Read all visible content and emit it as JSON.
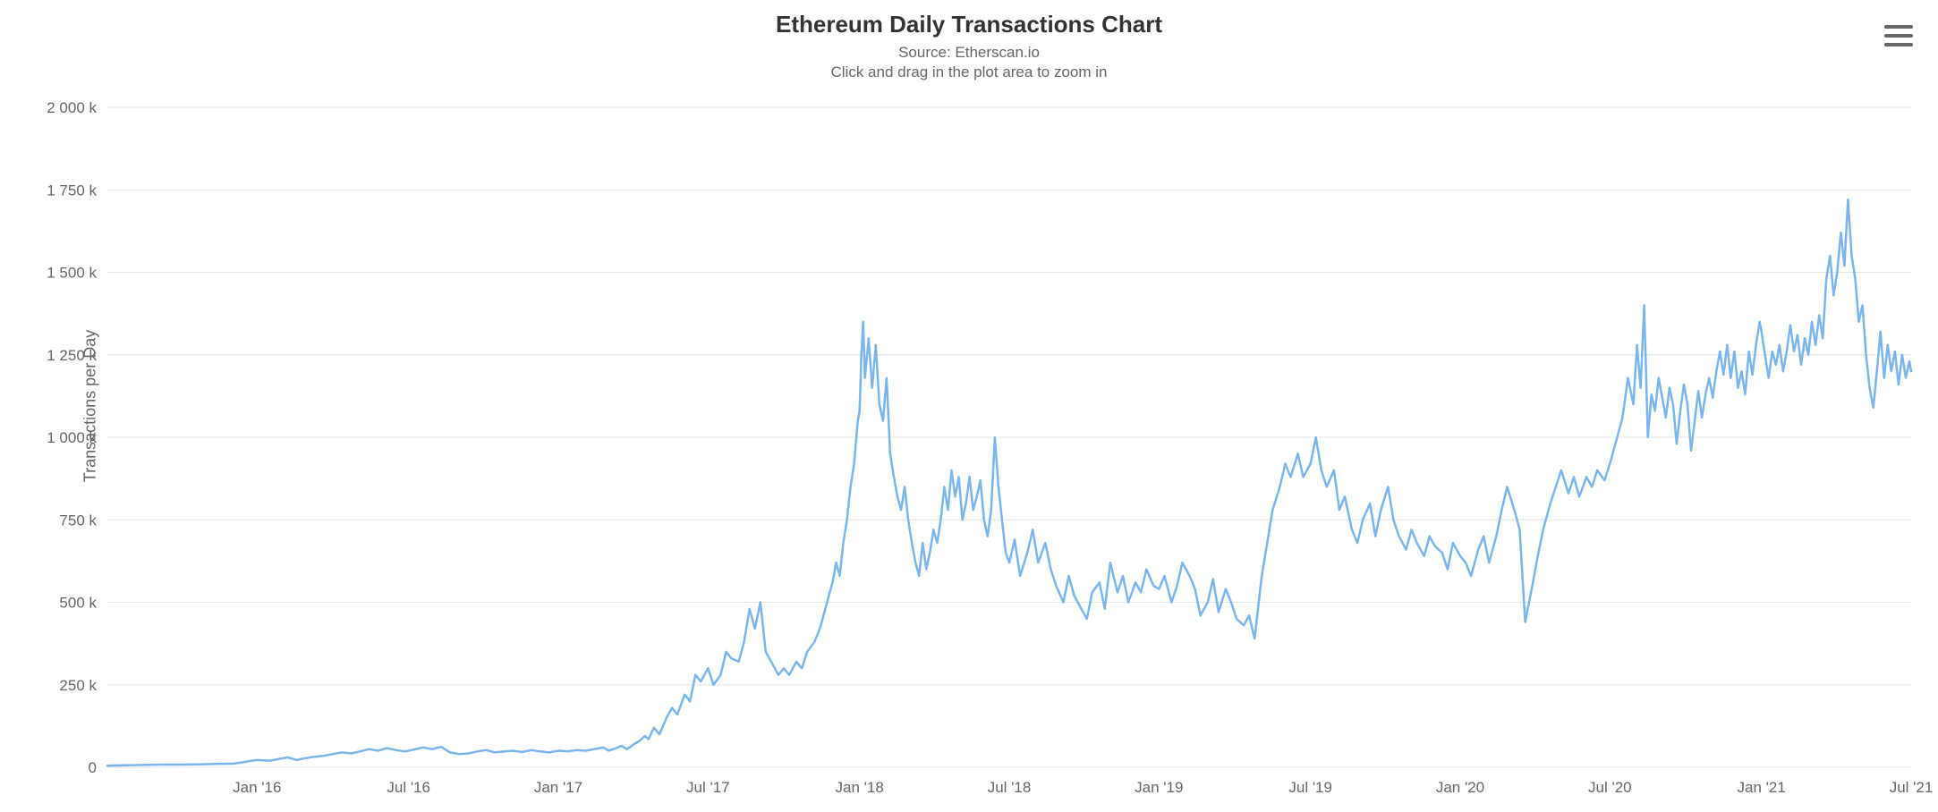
{
  "chart": {
    "title": "Ethereum Daily Transactions Chart",
    "subtitle": "Source: Etherscan.io",
    "instruction": "Click and drag in the plot area to zoom in",
    "y_axis_title": "Transactions per Day",
    "type": "line",
    "line_color": "#7cb5ec",
    "line_width": 2.5,
    "background_color": "#ffffff",
    "grid_color": "#e6e6e6",
    "text_color": "#666666",
    "title_color": "#333333",
    "title_fontsize": 26,
    "subtitle_fontsize": 17,
    "tick_fontsize": 17,
    "axis_title_fontsize": 18,
    "ylim": [
      0,
      2000
    ],
    "ytick_step": 250,
    "y_ticks": [
      {
        "value": 0,
        "label": "0"
      },
      {
        "value": 250,
        "label": "250 k"
      },
      {
        "value": 500,
        "label": "500 k"
      },
      {
        "value": 750,
        "label": "750 k"
      },
      {
        "value": 1000,
        "label": "1 000 k"
      },
      {
        "value": 1250,
        "label": "1 250 k"
      },
      {
        "value": 1500,
        "label": "1 500 k"
      },
      {
        "value": 1750,
        "label": "1 750 k"
      },
      {
        "value": 2000,
        "label": "2 000 k"
      }
    ],
    "x_ticks": [
      {
        "t": 0.083,
        "label": "Jan '16"
      },
      {
        "t": 0.167,
        "label": "Jul '16"
      },
      {
        "t": 0.25,
        "label": "Jan '17"
      },
      {
        "t": 0.333,
        "label": "Jul '17"
      },
      {
        "t": 0.417,
        "label": "Jan '18"
      },
      {
        "t": 0.5,
        "label": "Jul '18"
      },
      {
        "t": 0.583,
        "label": "Jan '19"
      },
      {
        "t": 0.667,
        "label": "Jul '19"
      },
      {
        "t": 0.75,
        "label": "Jan '20"
      },
      {
        "t": 0.833,
        "label": "Jul '20"
      },
      {
        "t": 0.917,
        "label": "Jan '21"
      },
      {
        "t": 1.0,
        "label": "Jul '21"
      }
    ],
    "data": [
      [
        0.0,
        5
      ],
      [
        0.01,
        6
      ],
      [
        0.02,
        7
      ],
      [
        0.03,
        8
      ],
      [
        0.04,
        8
      ],
      [
        0.05,
        9
      ],
      [
        0.06,
        10
      ],
      [
        0.07,
        11
      ],
      [
        0.075,
        15
      ],
      [
        0.08,
        20
      ],
      [
        0.083,
        22
      ],
      [
        0.09,
        20
      ],
      [
        0.095,
        25
      ],
      [
        0.1,
        30
      ],
      [
        0.105,
        22
      ],
      [
        0.11,
        28
      ],
      [
        0.115,
        32
      ],
      [
        0.12,
        35
      ],
      [
        0.125,
        40
      ],
      [
        0.13,
        45
      ],
      [
        0.135,
        42
      ],
      [
        0.14,
        48
      ],
      [
        0.145,
        55
      ],
      [
        0.15,
        50
      ],
      [
        0.155,
        58
      ],
      [
        0.16,
        52
      ],
      [
        0.165,
        48
      ],
      [
        0.167,
        50
      ],
      [
        0.175,
        60
      ],
      [
        0.18,
        55
      ],
      [
        0.185,
        62
      ],
      [
        0.19,
        45
      ],
      [
        0.195,
        40
      ],
      [
        0.2,
        42
      ],
      [
        0.205,
        48
      ],
      [
        0.21,
        52
      ],
      [
        0.215,
        45
      ],
      [
        0.22,
        48
      ],
      [
        0.225,
        50
      ],
      [
        0.23,
        46
      ],
      [
        0.235,
        52
      ],
      [
        0.24,
        48
      ],
      [
        0.245,
        45
      ],
      [
        0.25,
        50
      ],
      [
        0.255,
        48
      ],
      [
        0.26,
        52
      ],
      [
        0.265,
        50
      ],
      [
        0.27,
        55
      ],
      [
        0.275,
        60
      ],
      [
        0.278,
        50
      ],
      [
        0.282,
        58
      ],
      [
        0.285,
        65
      ],
      [
        0.288,
        55
      ],
      [
        0.292,
        70
      ],
      [
        0.295,
        80
      ],
      [
        0.298,
        95
      ],
      [
        0.3,
        85
      ],
      [
        0.303,
        120
      ],
      [
        0.306,
        100
      ],
      [
        0.31,
        150
      ],
      [
        0.313,
        180
      ],
      [
        0.316,
        160
      ],
      [
        0.32,
        220
      ],
      [
        0.323,
        200
      ],
      [
        0.326,
        280
      ],
      [
        0.329,
        260
      ],
      [
        0.333,
        300
      ],
      [
        0.336,
        250
      ],
      [
        0.34,
        280
      ],
      [
        0.343,
        350
      ],
      [
        0.346,
        330
      ],
      [
        0.35,
        320
      ],
      [
        0.353,
        380
      ],
      [
        0.356,
        480
      ],
      [
        0.359,
        420
      ],
      [
        0.362,
        500
      ],
      [
        0.365,
        350
      ],
      [
        0.368,
        320
      ],
      [
        0.372,
        280
      ],
      [
        0.375,
        300
      ],
      [
        0.378,
        280
      ],
      [
        0.382,
        320
      ],
      [
        0.385,
        300
      ],
      [
        0.388,
        350
      ],
      [
        0.392,
        380
      ],
      [
        0.395,
        420
      ],
      [
        0.398,
        480
      ],
      [
        0.4,
        520
      ],
      [
        0.402,
        560
      ],
      [
        0.404,
        620
      ],
      [
        0.406,
        580
      ],
      [
        0.408,
        680
      ],
      [
        0.41,
        750
      ],
      [
        0.412,
        850
      ],
      [
        0.414,
        920
      ],
      [
        0.416,
        1050
      ],
      [
        0.417,
        1080
      ],
      [
        0.418,
        1250
      ],
      [
        0.419,
        1350
      ],
      [
        0.42,
        1180
      ],
      [
        0.422,
        1300
      ],
      [
        0.424,
        1150
      ],
      [
        0.426,
        1280
      ],
      [
        0.428,
        1100
      ],
      [
        0.43,
        1050
      ],
      [
        0.432,
        1180
      ],
      [
        0.434,
        950
      ],
      [
        0.436,
        880
      ],
      [
        0.438,
        820
      ],
      [
        0.44,
        780
      ],
      [
        0.442,
        850
      ],
      [
        0.444,
        750
      ],
      [
        0.446,
        680
      ],
      [
        0.448,
        620
      ],
      [
        0.45,
        580
      ],
      [
        0.452,
        680
      ],
      [
        0.454,
        600
      ],
      [
        0.456,
        650
      ],
      [
        0.458,
        720
      ],
      [
        0.46,
        680
      ],
      [
        0.462,
        750
      ],
      [
        0.464,
        850
      ],
      [
        0.466,
        780
      ],
      [
        0.468,
        900
      ],
      [
        0.47,
        820
      ],
      [
        0.472,
        880
      ],
      [
        0.474,
        750
      ],
      [
        0.476,
        800
      ],
      [
        0.478,
        880
      ],
      [
        0.48,
        780
      ],
      [
        0.482,
        820
      ],
      [
        0.484,
        870
      ],
      [
        0.486,
        750
      ],
      [
        0.488,
        700
      ],
      [
        0.49,
        780
      ],
      [
        0.492,
        1000
      ],
      [
        0.494,
        850
      ],
      [
        0.496,
        750
      ],
      [
        0.498,
        650
      ],
      [
        0.5,
        620
      ],
      [
        0.503,
        690
      ],
      [
        0.506,
        580
      ],
      [
        0.51,
        650
      ],
      [
        0.513,
        720
      ],
      [
        0.516,
        620
      ],
      [
        0.52,
        680
      ],
      [
        0.523,
        600
      ],
      [
        0.526,
        550
      ],
      [
        0.53,
        500
      ],
      [
        0.533,
        580
      ],
      [
        0.536,
        520
      ],
      [
        0.54,
        480
      ],
      [
        0.543,
        450
      ],
      [
        0.546,
        530
      ],
      [
        0.55,
        560
      ],
      [
        0.553,
        480
      ],
      [
        0.556,
        620
      ],
      [
        0.56,
        530
      ],
      [
        0.563,
        580
      ],
      [
        0.566,
        500
      ],
      [
        0.57,
        560
      ],
      [
        0.573,
        530
      ],
      [
        0.576,
        600
      ],
      [
        0.58,
        550
      ],
      [
        0.583,
        540
      ],
      [
        0.586,
        580
      ],
      [
        0.59,
        500
      ],
      [
        0.593,
        550
      ],
      [
        0.596,
        620
      ],
      [
        0.6,
        580
      ],
      [
        0.603,
        540
      ],
      [
        0.606,
        460
      ],
      [
        0.61,
        500
      ],
      [
        0.613,
        570
      ],
      [
        0.616,
        470
      ],
      [
        0.62,
        540
      ],
      [
        0.623,
        500
      ],
      [
        0.626,
        450
      ],
      [
        0.63,
        430
      ],
      [
        0.633,
        460
      ],
      [
        0.636,
        390
      ],
      [
        0.64,
        580
      ],
      [
        0.643,
        680
      ],
      [
        0.646,
        780
      ],
      [
        0.65,
        850
      ],
      [
        0.653,
        920
      ],
      [
        0.656,
        880
      ],
      [
        0.66,
        950
      ],
      [
        0.663,
        880
      ],
      [
        0.667,
        920
      ],
      [
        0.67,
        1000
      ],
      [
        0.673,
        900
      ],
      [
        0.676,
        850
      ],
      [
        0.68,
        900
      ],
      [
        0.683,
        780
      ],
      [
        0.686,
        820
      ],
      [
        0.69,
        720
      ],
      [
        0.693,
        680
      ],
      [
        0.696,
        750
      ],
      [
        0.7,
        800
      ],
      [
        0.703,
        700
      ],
      [
        0.706,
        780
      ],
      [
        0.71,
        850
      ],
      [
        0.713,
        750
      ],
      [
        0.716,
        700
      ],
      [
        0.72,
        660
      ],
      [
        0.723,
        720
      ],
      [
        0.726,
        680
      ],
      [
        0.73,
        640
      ],
      [
        0.733,
        700
      ],
      [
        0.736,
        670
      ],
      [
        0.74,
        650
      ],
      [
        0.743,
        600
      ],
      [
        0.746,
        680
      ],
      [
        0.75,
        640
      ],
      [
        0.753,
        620
      ],
      [
        0.756,
        580
      ],
      [
        0.76,
        660
      ],
      [
        0.763,
        700
      ],
      [
        0.766,
        620
      ],
      [
        0.77,
        700
      ],
      [
        0.773,
        780
      ],
      [
        0.776,
        850
      ],
      [
        0.78,
        780
      ],
      [
        0.783,
        720
      ],
      [
        0.786,
        440
      ],
      [
        0.79,
        550
      ],
      [
        0.793,
        640
      ],
      [
        0.796,
        720
      ],
      [
        0.8,
        800
      ],
      [
        0.803,
        850
      ],
      [
        0.806,
        900
      ],
      [
        0.81,
        830
      ],
      [
        0.813,
        880
      ],
      [
        0.816,
        820
      ],
      [
        0.82,
        880
      ],
      [
        0.823,
        850
      ],
      [
        0.826,
        900
      ],
      [
        0.83,
        870
      ],
      [
        0.833,
        920
      ],
      [
        0.836,
        980
      ],
      [
        0.84,
        1060
      ],
      [
        0.843,
        1180
      ],
      [
        0.846,
        1100
      ],
      [
        0.848,
        1280
      ],
      [
        0.85,
        1150
      ],
      [
        0.852,
        1400
      ],
      [
        0.854,
        1000
      ],
      [
        0.856,
        1130
      ],
      [
        0.858,
        1080
      ],
      [
        0.86,
        1180
      ],
      [
        0.862,
        1120
      ],
      [
        0.864,
        1060
      ],
      [
        0.866,
        1150
      ],
      [
        0.868,
        1100
      ],
      [
        0.87,
        980
      ],
      [
        0.872,
        1080
      ],
      [
        0.874,
        1160
      ],
      [
        0.876,
        1100
      ],
      [
        0.878,
        960
      ],
      [
        0.88,
        1050
      ],
      [
        0.882,
        1140
      ],
      [
        0.884,
        1060
      ],
      [
        0.886,
        1130
      ],
      [
        0.888,
        1180
      ],
      [
        0.89,
        1120
      ],
      [
        0.892,
        1200
      ],
      [
        0.894,
        1260
      ],
      [
        0.896,
        1190
      ],
      [
        0.898,
        1280
      ],
      [
        0.9,
        1180
      ],
      [
        0.902,
        1260
      ],
      [
        0.904,
        1150
      ],
      [
        0.906,
        1200
      ],
      [
        0.908,
        1130
      ],
      [
        0.91,
        1260
      ],
      [
        0.912,
        1190
      ],
      [
        0.914,
        1280
      ],
      [
        0.916,
        1350
      ],
      [
        0.917,
        1320
      ],
      [
        0.919,
        1250
      ],
      [
        0.921,
        1180
      ],
      [
        0.923,
        1260
      ],
      [
        0.925,
        1220
      ],
      [
        0.927,
        1280
      ],
      [
        0.929,
        1200
      ],
      [
        0.931,
        1260
      ],
      [
        0.933,
        1340
      ],
      [
        0.935,
        1260
      ],
      [
        0.937,
        1310
      ],
      [
        0.939,
        1220
      ],
      [
        0.941,
        1300
      ],
      [
        0.943,
        1250
      ],
      [
        0.945,
        1350
      ],
      [
        0.947,
        1280
      ],
      [
        0.949,
        1370
      ],
      [
        0.951,
        1300
      ],
      [
        0.953,
        1480
      ],
      [
        0.955,
        1550
      ],
      [
        0.957,
        1430
      ],
      [
        0.959,
        1500
      ],
      [
        0.961,
        1620
      ],
      [
        0.963,
        1520
      ],
      [
        0.965,
        1720
      ],
      [
        0.967,
        1550
      ],
      [
        0.969,
        1480
      ],
      [
        0.971,
        1350
      ],
      [
        0.973,
        1400
      ],
      [
        0.975,
        1250
      ],
      [
        0.977,
        1150
      ],
      [
        0.979,
        1090
      ],
      [
        0.981,
        1200
      ],
      [
        0.983,
        1320
      ],
      [
        0.985,
        1180
      ],
      [
        0.987,
        1280
      ],
      [
        0.989,
        1200
      ],
      [
        0.991,
        1260
      ],
      [
        0.993,
        1160
      ],
      [
        0.995,
        1250
      ],
      [
        0.997,
        1180
      ],
      [
        0.999,
        1230
      ],
      [
        1.0,
        1200
      ]
    ]
  }
}
